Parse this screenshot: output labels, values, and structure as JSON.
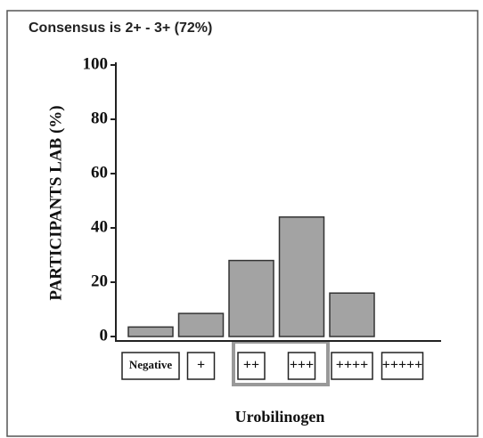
{
  "chart_data": {
    "type": "bar",
    "title": "Consensus is 2+ - 3+ (72%)",
    "ylabel": "PARTICIPANTS LAB  (%)",
    "xlabel": "Urobilinogen",
    "categories": [
      "Negative",
      "+",
      "++",
      "+++",
      "++++",
      "+++++"
    ],
    "values": [
      3.5,
      8.5,
      28,
      44,
      16,
      0
    ],
    "color": "#a3a3a3",
    "ylim": [
      0,
      100
    ],
    "yticks": [
      0,
      20,
      40,
      60,
      80,
      100
    ]
  }
}
